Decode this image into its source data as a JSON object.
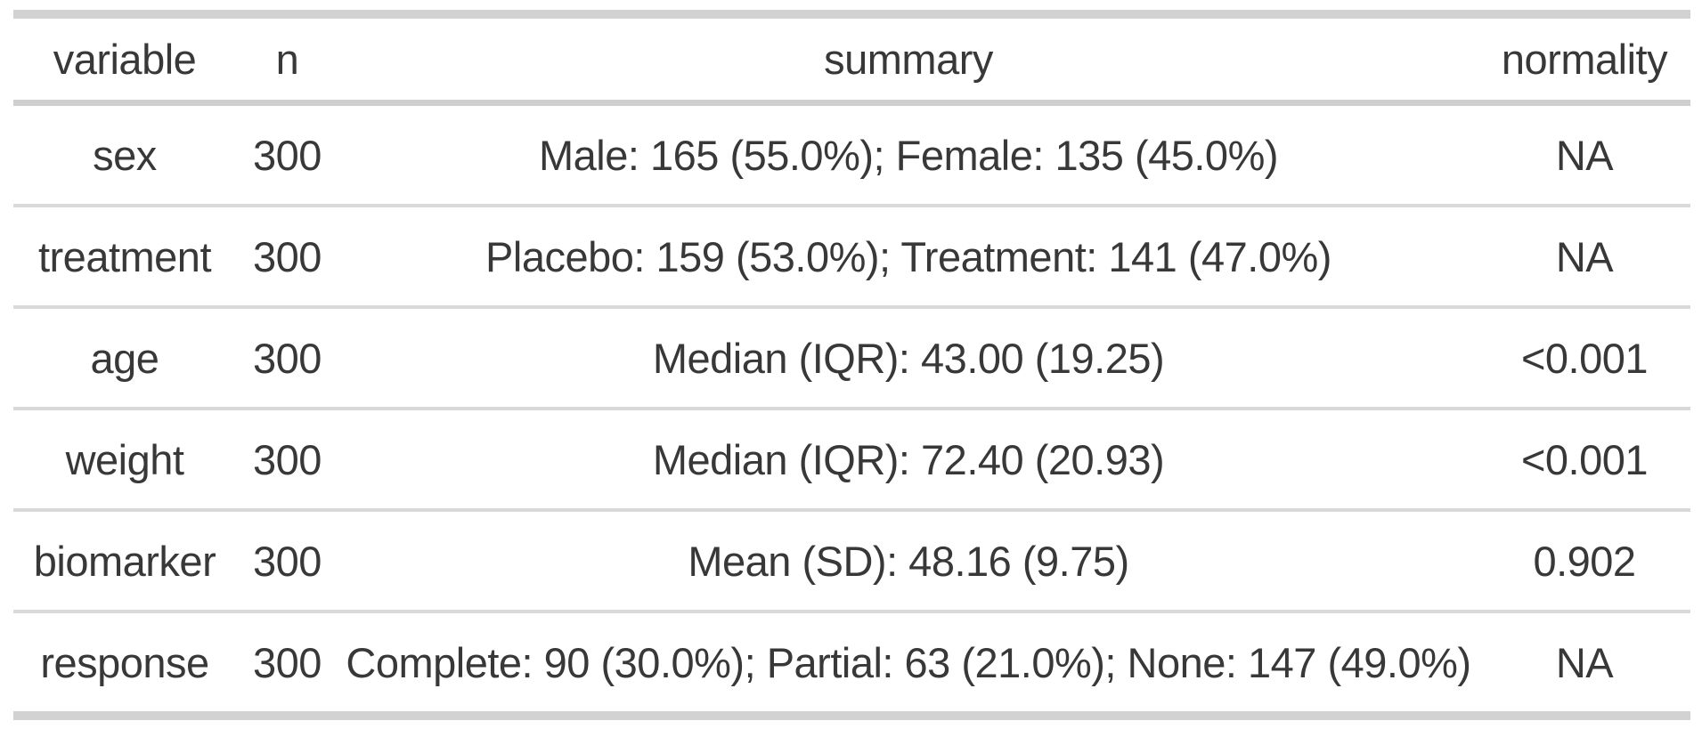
{
  "table": {
    "columns": {
      "variable": "variable",
      "n": "n",
      "summary": "summary",
      "normality": "normality"
    },
    "rows": [
      {
        "variable": "sex",
        "n": "300",
        "summary": "Male: 165 (55.0%); Female: 135 (45.0%)",
        "normality": "NA"
      },
      {
        "variable": "treatment",
        "n": "300",
        "summary": "Placebo: 159 (53.0%); Treatment: 141 (47.0%)",
        "normality": "NA"
      },
      {
        "variable": "age",
        "n": "300",
        "summary": "Median (IQR): 43.00 (19.25)",
        "normality": "<0.001"
      },
      {
        "variable": "weight",
        "n": "300",
        "summary": "Median (IQR): 72.40 (20.93)",
        "normality": "<0.001"
      },
      {
        "variable": "biomarker",
        "n": "300",
        "summary": "Mean (SD): 48.16 (9.75)",
        "normality": "0.902"
      },
      {
        "variable": "response",
        "n": "300",
        "summary": "Complete: 90 (30.0%); Partial: 63 (21.0%); None: 147 (49.0%)",
        "normality": "NA"
      }
    ]
  }
}
